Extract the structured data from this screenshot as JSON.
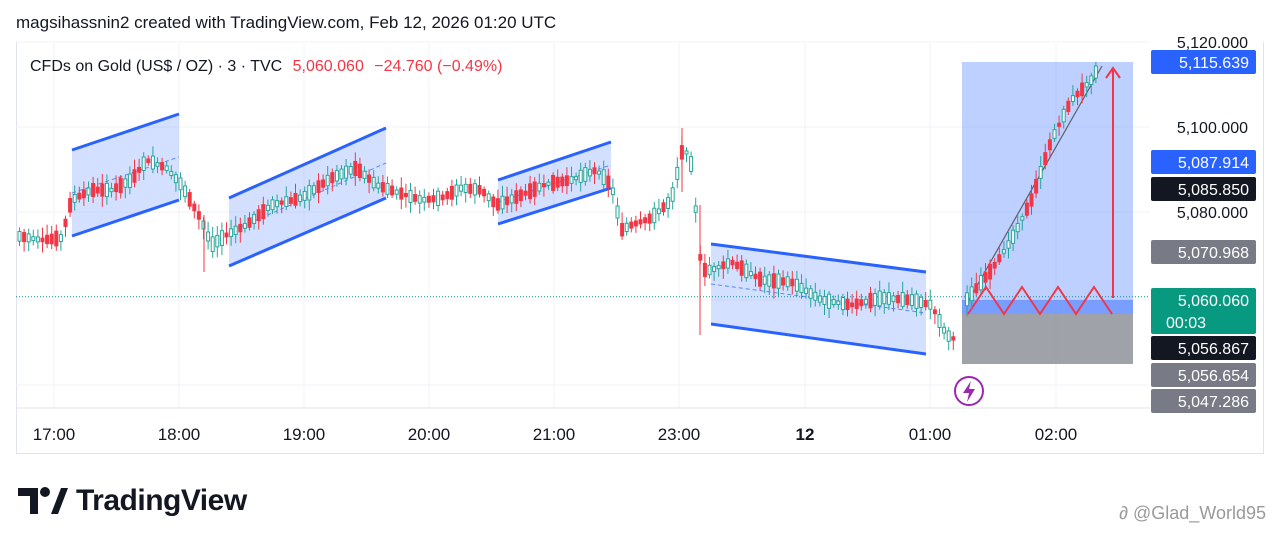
{
  "header": {
    "created_line": "magsihassnin2 created with TradingView.com, Feb 12, 2026 01:20 UTC"
  },
  "legend": {
    "symbol": "CFDs on Gold (US$ / OZ) · 3 · TVC",
    "price": "5,060.060",
    "change": "−24.760 (−0.49%)"
  },
  "colors": {
    "up": "#26a69a",
    "down": "#f23645",
    "channel_fill": "#2962ff",
    "channel_edge": "#2962ff",
    "blue_label": "#2962ff",
    "green_label": "#089981",
    "dark_label": "#131722",
    "gray_label": "#787b86",
    "arrow": "#f23645"
  },
  "chart_data": {
    "type": "candlestick",
    "x_labels": [
      "17:00",
      "18:00",
      "19:00",
      "20:00",
      "21:00",
      "23:00",
      "12",
      "01:00",
      "02:00"
    ],
    "y_ticks": [
      5100.0,
      5080.0
    ],
    "y_top_partial": "5,120.000",
    "price_labels": [
      {
        "text": "5,115.639",
        "kind": "blue"
      },
      {
        "text": "5,087.914",
        "kind": "blue"
      },
      {
        "text": "5,085.850",
        "kind": "dark"
      },
      {
        "text": "5,070.968",
        "kind": "gray"
      },
      {
        "text": "5,060.060",
        "sub": "00:03",
        "kind": "green"
      },
      {
        "text": "5,056.867",
        "kind": "dark"
      },
      {
        "text": "5,056.654",
        "kind": "gray"
      },
      {
        "text": "5,047.286",
        "kind": "gray"
      }
    ],
    "projection": {
      "target": 5115.639,
      "entry": 5060.06,
      "stop": 5047.286
    },
    "last_price": 5060.06
  },
  "branding": {
    "logo_text": "TradingView",
    "watermark": "@Glad_World95"
  },
  "icons": {
    "alert": "lightning-alert-icon",
    "logo": "tradingview-logo-icon",
    "weibo": "weibo-icon"
  }
}
